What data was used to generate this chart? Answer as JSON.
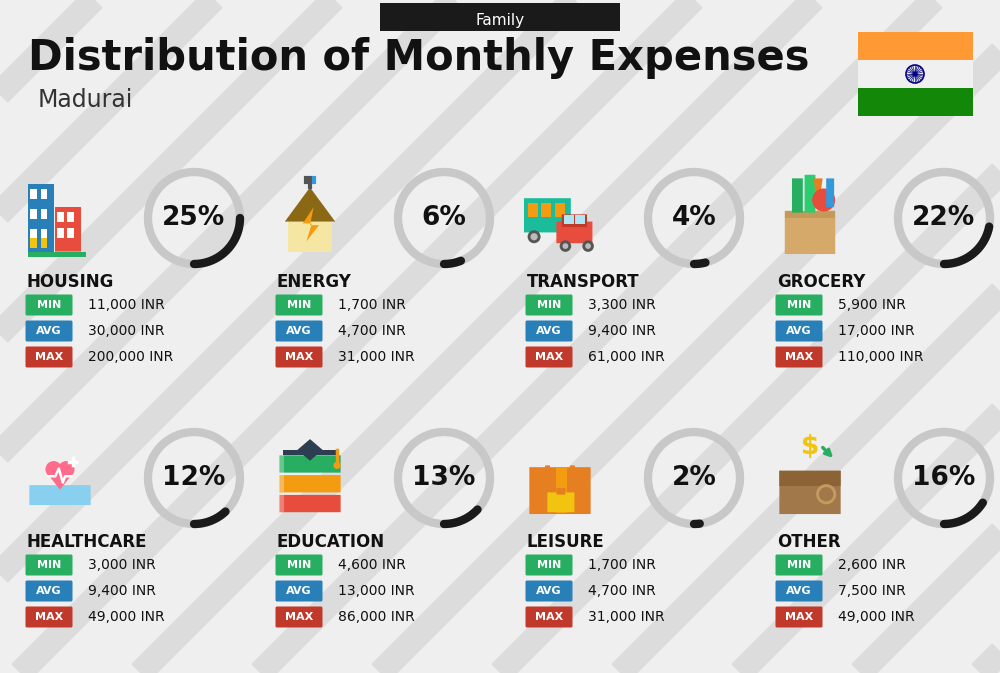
{
  "title": "Distribution of Monthly Expenses",
  "subtitle": "Family",
  "city": "Madurai",
  "bg_color": "#efefef",
  "header_bg": "#1a1a1a",
  "header_text_color": "#ffffff",
  "title_color": "#111111",
  "city_color": "#333333",
  "categories": [
    {
      "name": "HOUSING",
      "pct": 25,
      "min": "11,000 INR",
      "avg": "30,000 INR",
      "max": "200,000 INR",
      "col": 0,
      "row": 0,
      "icon": "housing"
    },
    {
      "name": "ENERGY",
      "pct": 6,
      "min": "1,700 INR",
      "avg": "4,700 INR",
      "max": "31,000 INR",
      "col": 1,
      "row": 0,
      "icon": "energy"
    },
    {
      "name": "TRANSPORT",
      "pct": 4,
      "min": "3,300 INR",
      "avg": "9,400 INR",
      "max": "61,000 INR",
      "col": 2,
      "row": 0,
      "icon": "transport"
    },
    {
      "name": "GROCERY",
      "pct": 22,
      "min": "5,900 INR",
      "avg": "17,000 INR",
      "max": "110,000 INR",
      "col": 3,
      "row": 0,
      "icon": "grocery"
    },
    {
      "name": "HEALTHCARE",
      "pct": 12,
      "min": "3,000 INR",
      "avg": "9,400 INR",
      "max": "49,000 INR",
      "col": 0,
      "row": 1,
      "icon": "healthcare"
    },
    {
      "name": "EDUCATION",
      "pct": 13,
      "min": "4,600 INR",
      "avg": "13,000 INR",
      "max": "86,000 INR",
      "col": 1,
      "row": 1,
      "icon": "education"
    },
    {
      "name": "LEISURE",
      "pct": 2,
      "min": "1,700 INR",
      "avg": "4,700 INR",
      "max": "31,000 INR",
      "col": 2,
      "row": 1,
      "icon": "leisure"
    },
    {
      "name": "OTHER",
      "pct": 16,
      "min": "2,600 INR",
      "avg": "7,500 INR",
      "max": "49,000 INR",
      "col": 3,
      "row": 1,
      "icon": "other"
    }
  ],
  "min_color": "#27ae60",
  "avg_color": "#2980b9",
  "max_color": "#c0392b",
  "arc_dark": "#1a1a1a",
  "arc_light": "#c8c8c8",
  "india_orange": "#FF9933",
  "india_green": "#138808",
  "india_navy": "#000080"
}
